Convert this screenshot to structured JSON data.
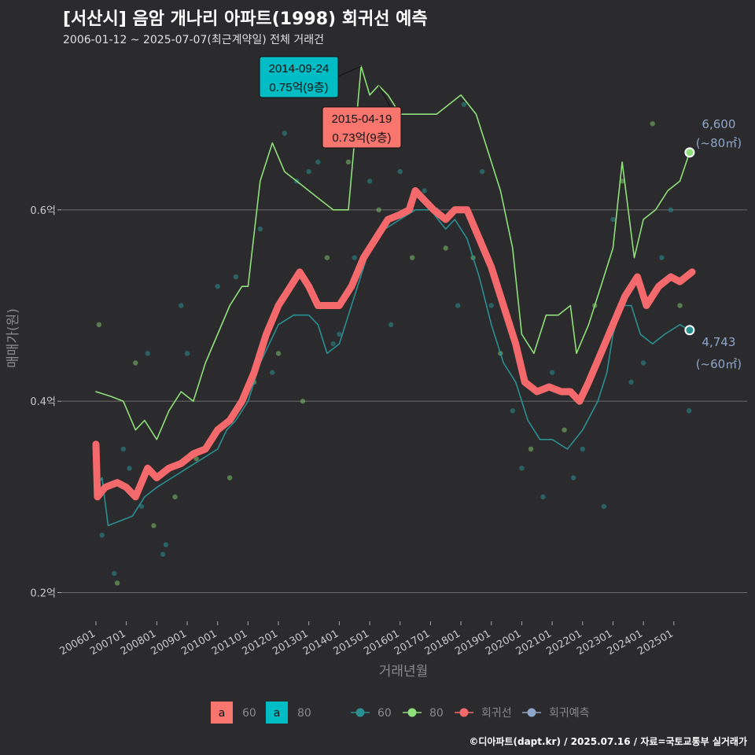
{
  "header": {
    "title": "[서산시] 음암 개나리 아파트(1998) 회귀선 예측",
    "subtitle": "2006-01-12 ~ 2025-07-07(최근계약일) 전체 거래건"
  },
  "footer": "©디아파트(dapt.kr) / 2025.07.16 / 자료=국토교통부 실거래가",
  "colors": {
    "background": "#2b2b2d",
    "series60": "#2a8f92",
    "series80": "#8fe07a",
    "regression": "#f4696b",
    "prediction": "#8fa6c9",
    "annotation80": "#00bcc4",
    "annotation60": "#f8766d"
  },
  "chart_data": {
    "type": "line",
    "title": "[서산시] 음암 개나리 아파트(1998) 회귀선 예측",
    "xlabel": "거래년월",
    "ylabel": "매매가(원)",
    "ylim": [
      0.17,
      0.77
    ],
    "y_ticks": [
      {
        "v": 0.2,
        "label": "0.2억"
      },
      {
        "v": 0.4,
        "label": "0.4억"
      },
      {
        "v": 0.6,
        "label": "0.6억"
      }
    ],
    "x_ticks": [
      "200601",
      "200701",
      "200801",
      "200901",
      "201001",
      "201101",
      "201201",
      "201301",
      "201401",
      "201501",
      "201601",
      "201701",
      "201801",
      "201901",
      "202001",
      "202101",
      "202201",
      "202301",
      "202401",
      "202501"
    ],
    "series": [
      {
        "name": "60",
        "color": "#2a8f92",
        "points": [
          [
            2006.0,
            0.31
          ],
          [
            2006.2,
            0.32
          ],
          [
            2006.4,
            0.27
          ],
          [
            2006.8,
            0.275
          ],
          [
            2007.2,
            0.28
          ],
          [
            2007.6,
            0.3
          ],
          [
            2008.0,
            0.31
          ],
          [
            2008.5,
            0.32
          ],
          [
            2009.0,
            0.33
          ],
          [
            2009.5,
            0.34
          ],
          [
            2010.0,
            0.35
          ],
          [
            2010.3,
            0.37
          ],
          [
            2010.6,
            0.38
          ],
          [
            2011.0,
            0.4
          ],
          [
            2011.4,
            0.44
          ],
          [
            2011.7,
            0.46
          ],
          [
            2012.0,
            0.48
          ],
          [
            2012.5,
            0.49
          ],
          [
            2013.0,
            0.49
          ],
          [
            2013.3,
            0.48
          ],
          [
            2013.6,
            0.45
          ],
          [
            2014.0,
            0.46
          ],
          [
            2014.3,
            0.49
          ],
          [
            2014.7,
            0.53
          ],
          [
            2015.0,
            0.56
          ],
          [
            2015.5,
            0.58
          ],
          [
            2016.0,
            0.59
          ],
          [
            2016.5,
            0.6
          ],
          [
            2017.0,
            0.6
          ],
          [
            2017.5,
            0.58
          ],
          [
            2017.8,
            0.59
          ],
          [
            2018.2,
            0.57
          ],
          [
            2018.6,
            0.53
          ],
          [
            2019.0,
            0.48
          ],
          [
            2019.4,
            0.44
          ],
          [
            2019.8,
            0.42
          ],
          [
            2020.2,
            0.38
          ],
          [
            2020.6,
            0.36
          ],
          [
            2021.0,
            0.36
          ],
          [
            2021.5,
            0.35
          ],
          [
            2022.0,
            0.37
          ],
          [
            2022.5,
            0.4
          ],
          [
            2022.8,
            0.43
          ],
          [
            2023.0,
            0.47
          ],
          [
            2023.3,
            0.5
          ],
          [
            2023.6,
            0.5
          ],
          [
            2023.9,
            0.47
          ],
          [
            2024.3,
            0.46
          ],
          [
            2024.7,
            0.47
          ],
          [
            2025.2,
            0.48
          ],
          [
            2025.52,
            0.4743
          ]
        ]
      },
      {
        "name": "80",
        "color": "#8fe07a",
        "points": [
          [
            2006.0,
            0.41
          ],
          [
            2006.5,
            0.405
          ],
          [
            2006.9,
            0.4
          ],
          [
            2007.3,
            0.37
          ],
          [
            2007.6,
            0.38
          ],
          [
            2008.0,
            0.36
          ],
          [
            2008.4,
            0.39
          ],
          [
            2008.8,
            0.41
          ],
          [
            2009.2,
            0.4
          ],
          [
            2009.6,
            0.44
          ],
          [
            2010.0,
            0.47
          ],
          [
            2010.4,
            0.5
          ],
          [
            2010.8,
            0.52
          ],
          [
            2011.0,
            0.52
          ],
          [
            2011.4,
            0.63
          ],
          [
            2011.8,
            0.67
          ],
          [
            2012.2,
            0.64
          ],
          [
            2012.6,
            0.63
          ],
          [
            2013.0,
            0.62
          ],
          [
            2013.4,
            0.61
          ],
          [
            2013.8,
            0.6
          ],
          [
            2014.0,
            0.6
          ],
          [
            2014.3,
            0.6
          ],
          [
            2014.72,
            0.75
          ],
          [
            2015.0,
            0.72
          ],
          [
            2015.29,
            0.73
          ],
          [
            2015.6,
            0.72
          ],
          [
            2016.0,
            0.7
          ],
          [
            2016.4,
            0.7
          ],
          [
            2016.8,
            0.7
          ],
          [
            2017.0,
            0.7
          ],
          [
            2017.2,
            0.7
          ],
          [
            2017.6,
            0.71
          ],
          [
            2018.0,
            0.72
          ],
          [
            2018.5,
            0.7
          ],
          [
            2018.9,
            0.66
          ],
          [
            2019.3,
            0.62
          ],
          [
            2019.7,
            0.56
          ],
          [
            2020.0,
            0.47
          ],
          [
            2020.4,
            0.45
          ],
          [
            2020.8,
            0.49
          ],
          [
            2021.2,
            0.49
          ],
          [
            2021.6,
            0.5
          ],
          [
            2021.8,
            0.45
          ],
          [
            2022.2,
            0.48
          ],
          [
            2022.6,
            0.52
          ],
          [
            2023.0,
            0.56
          ],
          [
            2023.3,
            0.65
          ],
          [
            2023.7,
            0.55
          ],
          [
            2024.0,
            0.59
          ],
          [
            2024.4,
            0.6
          ],
          [
            2024.8,
            0.62
          ],
          [
            2025.2,
            0.63
          ],
          [
            2025.52,
            0.66
          ]
        ]
      },
      {
        "name": "회귀선",
        "color": "#f4696b",
        "points": [
          [
            2006.0,
            0.355
          ],
          [
            2006.05,
            0.3
          ],
          [
            2006.3,
            0.31
          ],
          [
            2006.7,
            0.315
          ],
          [
            2007.0,
            0.31
          ],
          [
            2007.3,
            0.3
          ],
          [
            2007.7,
            0.33
          ],
          [
            2008.0,
            0.32
          ],
          [
            2008.4,
            0.33
          ],
          [
            2008.8,
            0.335
          ],
          [
            2009.2,
            0.345
          ],
          [
            2009.6,
            0.35
          ],
          [
            2010.0,
            0.37
          ],
          [
            2010.4,
            0.38
          ],
          [
            2010.8,
            0.4
          ],
          [
            2011.2,
            0.43
          ],
          [
            2011.6,
            0.47
          ],
          [
            2012.0,
            0.5
          ],
          [
            2012.4,
            0.52
          ],
          [
            2012.7,
            0.535
          ],
          [
            2013.0,
            0.52
          ],
          [
            2013.3,
            0.5
          ],
          [
            2013.7,
            0.5
          ],
          [
            2014.0,
            0.5
          ],
          [
            2014.4,
            0.52
          ],
          [
            2014.8,
            0.55
          ],
          [
            2015.2,
            0.57
          ],
          [
            2015.6,
            0.59
          ],
          [
            2016.0,
            0.595
          ],
          [
            2016.3,
            0.6
          ],
          [
            2016.5,
            0.62
          ],
          [
            2016.8,
            0.61
          ],
          [
            2017.1,
            0.6
          ],
          [
            2017.5,
            0.59
          ],
          [
            2017.8,
            0.6
          ],
          [
            2018.2,
            0.6
          ],
          [
            2018.6,
            0.57
          ],
          [
            2019.0,
            0.54
          ],
          [
            2019.4,
            0.5
          ],
          [
            2019.8,
            0.46
          ],
          [
            2020.1,
            0.42
          ],
          [
            2020.5,
            0.41
          ],
          [
            2020.9,
            0.415
          ],
          [
            2021.3,
            0.41
          ],
          [
            2021.6,
            0.41
          ],
          [
            2021.9,
            0.4
          ],
          [
            2022.2,
            0.42
          ],
          [
            2022.6,
            0.45
          ],
          [
            2023.0,
            0.48
          ],
          [
            2023.4,
            0.51
          ],
          [
            2023.8,
            0.53
          ],
          [
            2024.1,
            0.5
          ],
          [
            2024.5,
            0.52
          ],
          [
            2024.9,
            0.53
          ],
          [
            2025.2,
            0.525
          ],
          [
            2025.6,
            0.535
          ]
        ]
      }
    ],
    "scatter_points": [
      [
        2006.1,
        0.48
      ],
      [
        2006.2,
        0.26
      ],
      [
        2006.6,
        0.22
      ],
      [
        2006.7,
        0.21
      ],
      [
        2006.9,
        0.35
      ],
      [
        2007.1,
        0.33
      ],
      [
        2007.3,
        0.44
      ],
      [
        2007.5,
        0.29
      ],
      [
        2007.7,
        0.45
      ],
      [
        2007.9,
        0.27
      ],
      [
        2008.2,
        0.24
      ],
      [
        2008.3,
        0.25
      ],
      [
        2008.6,
        0.3
      ],
      [
        2008.8,
        0.5
      ],
      [
        2009.0,
        0.45
      ],
      [
        2009.3,
        0.34
      ],
      [
        2009.8,
        0.36
      ],
      [
        2010.0,
        0.52
      ],
      [
        2010.4,
        0.32
      ],
      [
        2010.6,
        0.53
      ],
      [
        2010.9,
        0.41
      ],
      [
        2011.2,
        0.42
      ],
      [
        2011.4,
        0.58
      ],
      [
        2011.8,
        0.43
      ],
      [
        2012.0,
        0.45
      ],
      [
        2012.2,
        0.68
      ],
      [
        2012.6,
        0.63
      ],
      [
        2012.8,
        0.4
      ],
      [
        2013.0,
        0.64
      ],
      [
        2013.3,
        0.65
      ],
      [
        2013.6,
        0.55
      ],
      [
        2013.8,
        0.46
      ],
      [
        2014.0,
        0.47
      ],
      [
        2014.3,
        0.65
      ],
      [
        2014.5,
        0.55
      ],
      [
        2015.0,
        0.63
      ],
      [
        2015.3,
        0.6
      ],
      [
        2015.7,
        0.48
      ],
      [
        2016.0,
        0.64
      ],
      [
        2016.4,
        0.55
      ],
      [
        2016.8,
        0.62
      ],
      [
        2017.2,
        0.6
      ],
      [
        2017.5,
        0.56
      ],
      [
        2017.9,
        0.5
      ],
      [
        2018.1,
        0.71
      ],
      [
        2018.4,
        0.55
      ],
      [
        2018.7,
        0.64
      ],
      [
        2019.0,
        0.5
      ],
      [
        2019.3,
        0.45
      ],
      [
        2019.7,
        0.39
      ],
      [
        2020.0,
        0.33
      ],
      [
        2020.3,
        0.35
      ],
      [
        2020.7,
        0.3
      ],
      [
        2021.0,
        0.43
      ],
      [
        2021.4,
        0.37
      ],
      [
        2021.7,
        0.32
      ],
      [
        2022.0,
        0.35
      ],
      [
        2022.4,
        0.5
      ],
      [
        2022.7,
        0.29
      ],
      [
        2023.0,
        0.59
      ],
      [
        2023.3,
        0.63
      ],
      [
        2023.6,
        0.42
      ],
      [
        2024.0,
        0.44
      ],
      [
        2024.3,
        0.69
      ],
      [
        2024.6,
        0.55
      ],
      [
        2024.9,
        0.6
      ],
      [
        2025.2,
        0.5
      ],
      [
        2025.5,
        0.39
      ]
    ],
    "end_points": [
      {
        "series": "80",
        "x": 2025.52,
        "y": 0.66,
        "label": "6,600",
        "sub": "(~80㎡)"
      },
      {
        "series": "60",
        "x": 2025.52,
        "y": 0.4743,
        "label": "4,743",
        "sub": "(~60㎡)"
      }
    ],
    "annotations": [
      {
        "date": "2014-09-24",
        "value": "0.75억(9층)",
        "x": 2014.72,
        "y": 0.75,
        "series": "80"
      },
      {
        "date": "2015-04-19",
        "value": "0.73억(9층)",
        "x": 2015.29,
        "y": 0.73,
        "series": "60"
      }
    ],
    "legend": {
      "fill_items": [
        {
          "key": "a",
          "label": "60",
          "color": "#f8766d"
        },
        {
          "key": "a",
          "label": "80",
          "color": "#00bcc4"
        }
      ],
      "line_items": [
        {
          "label": "60",
          "color": "#2a8f92"
        },
        {
          "label": "80",
          "color": "#8fe07a"
        },
        {
          "label": "회귀선",
          "color": "#f4696b"
        },
        {
          "label": "회귀예측",
          "color": "#8fa6c9"
        }
      ],
      "position": "bottom"
    }
  }
}
